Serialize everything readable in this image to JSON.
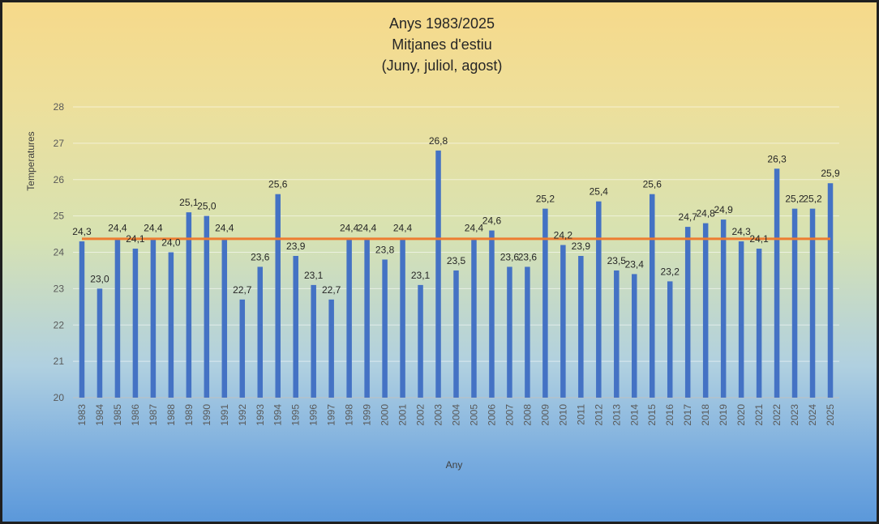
{
  "chart_data": {
    "type": "bar",
    "title": [
      "Anys 1983/2025",
      "Mitjanes d'estiu",
      "(Juny, juliol, agost)"
    ],
    "xlabel": "Any",
    "ylabel": "Temperatures",
    "ylim": [
      20,
      28
    ],
    "yticks": [
      "20",
      "21",
      "22",
      "23",
      "24",
      "25",
      "26",
      "27",
      "28"
    ],
    "grid": true,
    "categories": [
      "1983",
      "1984",
      "1985",
      "1986",
      "1987",
      "1988",
      "1989",
      "1990",
      "1991",
      "1992",
      "1993",
      "1994",
      "1995",
      "1996",
      "1997",
      "1998",
      "1999",
      "2000",
      "2001",
      "2002",
      "2003",
      "2004",
      "2005",
      "2006",
      "2007",
      "2008",
      "2009",
      "2010",
      "2011",
      "2012",
      "2013",
      "2014",
      "2015",
      "2016",
      "2017",
      "2018",
      "2019",
      "2020",
      "2021",
      "2022",
      "2023",
      "2024",
      "2025"
    ],
    "series": [
      {
        "type": "bar",
        "color": "#4472c4",
        "values": [
          24.3,
          23.0,
          24.4,
          24.1,
          24.4,
          24.0,
          25.1,
          25.0,
          24.4,
          22.7,
          23.6,
          25.6,
          23.9,
          23.1,
          22.7,
          24.4,
          24.4,
          23.8,
          24.4,
          23.1,
          26.8,
          23.5,
          24.4,
          24.6,
          23.6,
          23.6,
          25.2,
          24.2,
          23.9,
          25.4,
          23.5,
          23.4,
          25.6,
          23.2,
          24.7,
          24.8,
          24.9,
          24.3,
          24.1,
          26.3,
          25.2,
          25.2,
          25.9
        ],
        "data_labels": [
          "24,3",
          "23,0",
          "24,4",
          "24,1",
          "24,4",
          "24,0",
          "25,1",
          "25,0",
          "24,4",
          "22,7",
          "23,6",
          "25,6",
          "23,9",
          "23,1",
          "22,7",
          "24,4",
          "24,4",
          "23,8",
          "24,4",
          "23,1",
          "26,8",
          "23,5",
          "24,4",
          "24,6",
          "23,6",
          "23,6",
          "25,2",
          "24,2",
          "23,9",
          "25,4",
          "23,5",
          "23,4",
          "25,6",
          "23,2",
          "24,7",
          "24,8",
          "24,9",
          "24,3",
          "24,1",
          "26,3",
          "25,2",
          "25,2",
          "25,9"
        ]
      },
      {
        "type": "line",
        "color": "#ed7d31",
        "value": 24.37
      }
    ]
  }
}
